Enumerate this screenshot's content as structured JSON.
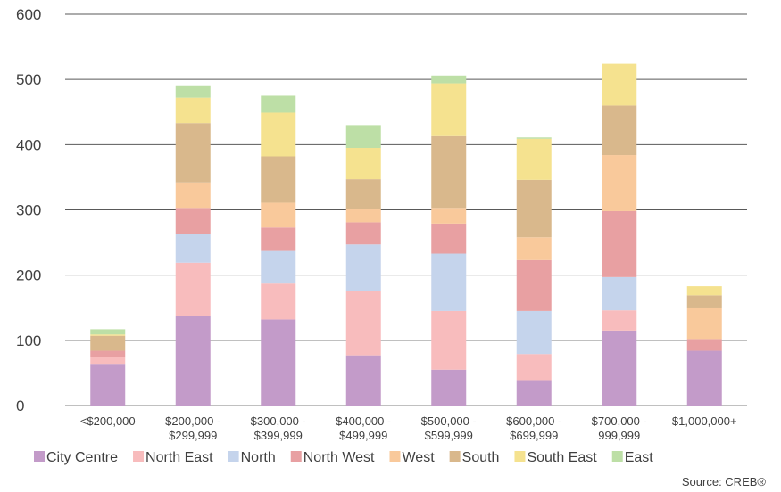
{
  "chart_data": {
    "type": "bar",
    "stacked": true,
    "categories": [
      [
        "<$200,000"
      ],
      [
        "$200,000 -",
        "$299,999"
      ],
      [
        "$300,000 -",
        "$399,999"
      ],
      [
        "$400,000 -",
        "$499,999"
      ],
      [
        "$500,000 -",
        "$599,999"
      ],
      [
        "$600,000 -",
        "$699,999"
      ],
      [
        "$700,000 -",
        "999,999"
      ],
      [
        "$1,000,000+"
      ]
    ],
    "series": [
      {
        "name": "City Centre",
        "color": "#c39bc9",
        "values": [
          64,
          138,
          132,
          77,
          55,
          39,
          115,
          84
        ]
      },
      {
        "name": "North East",
        "color": "#f8bcbd",
        "values": [
          11,
          81,
          55,
          98,
          90,
          40,
          31,
          0
        ]
      },
      {
        "name": "North",
        "color": "#c5d4ec",
        "values": [
          0,
          44,
          50,
          72,
          88,
          66,
          51,
          0
        ]
      },
      {
        "name": "North West",
        "color": "#e8a0a2",
        "values": [
          9,
          40,
          36,
          34,
          46,
          78,
          101,
          18
        ]
      },
      {
        "name": "West",
        "color": "#f9c99b",
        "values": [
          0,
          39,
          38,
          21,
          24,
          35,
          86,
          47
        ]
      },
      {
        "name": "South",
        "color": "#d9b88c",
        "values": [
          23,
          91,
          71,
          45,
          110,
          88,
          76,
          20
        ]
      },
      {
        "name": "South East",
        "color": "#f5e28f",
        "values": [
          2,
          39,
          67,
          48,
          81,
          63,
          64,
          14
        ]
      },
      {
        "name": "East",
        "color": "#bddfa6",
        "values": [
          8,
          19,
          26,
          35,
          12,
          2,
          0,
          0
        ]
      }
    ],
    "ylim": [
      0,
      600
    ],
    "yticks": [
      0,
      100,
      200,
      300,
      400,
      500,
      600
    ],
    "grid": true,
    "legend_position": "bottom",
    "source": "Source: CREB®"
  }
}
